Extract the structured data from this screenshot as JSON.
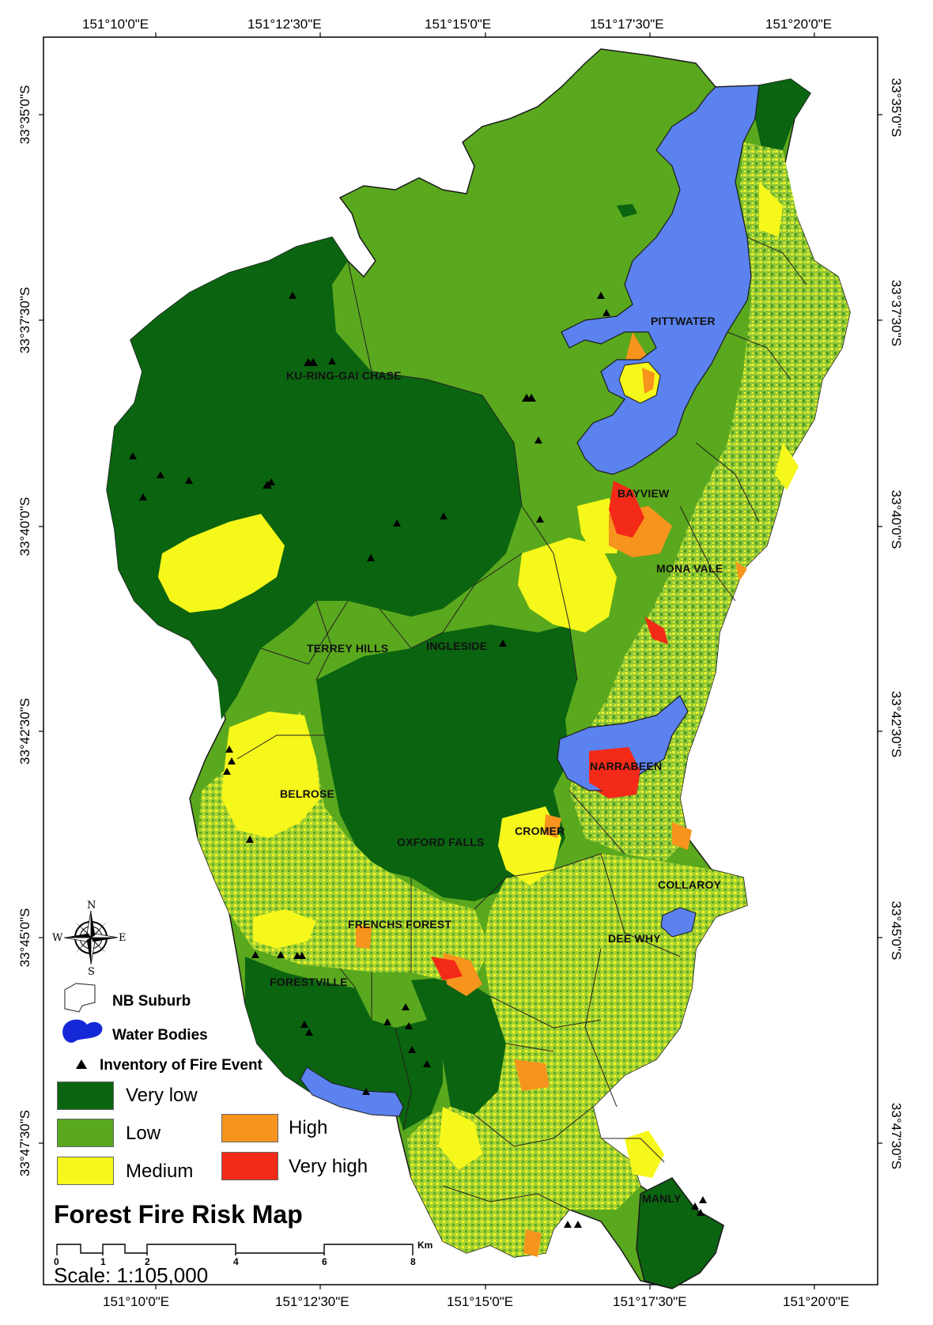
{
  "map": {
    "title": "Forest Fire Risk Map",
    "scale_text": "Scale: 1:105,000",
    "scale_bar": {
      "ticks": [
        "0",
        "1",
        "2",
        "4",
        "6",
        "8"
      ],
      "unit": "Km"
    },
    "coords_top": [
      "151°10'0\"E",
      "151°12'30\"E",
      "151°15'0\"E",
      "151°17'30\"E",
      "151°20'0\"E"
    ],
    "coords_bottom": [
      "151°10'0\"E",
      "151°12'30\"E",
      "151°15'0\"E",
      "151°17'30\"E",
      "151°20'0\"E"
    ],
    "coords_left": [
      "33°35'0\"S",
      "33°37'30\"S",
      "33°40'0\"S",
      "33°42'30\"S",
      "33°45'0\"S",
      "33°47'30\"S"
    ],
    "coords_right": [
      "33°35'0\"S",
      "33°37'30\"S",
      "33°40'0\"S",
      "33°42'30\"S",
      "33°45'0\"S",
      "33°47'30\"S"
    ],
    "places": [
      "PITTWATER",
      "KU-RING-GAI CHASE",
      "BAYVIEW",
      "MONA VALE",
      "TERREY HILLS",
      "INGLESIDE",
      "NARRABEEN",
      "BELROSE",
      "CROMER",
      "OXFORD FALLS",
      "COLLAROY",
      "FRENCHS FOREST",
      "DEE WHY",
      "FORESTVILLE",
      "MANLY"
    ],
    "compass": {
      "n": "N",
      "s": "S",
      "e": "E",
      "w": "W"
    }
  },
  "legend": {
    "symbols": [
      {
        "label": "NB Suburb",
        "icon": "suburb-outline-icon"
      },
      {
        "label": "Water Bodies",
        "icon": "water-body-icon"
      },
      {
        "label": "Inventory of Fire Event",
        "icon": "fire-event-triangle-icon"
      }
    ],
    "classes": [
      {
        "label": "Very low",
        "color": "#0b6410"
      },
      {
        "label": "Low",
        "color": "#5aa81e"
      },
      {
        "label": "Medium",
        "color": "#f6f71a"
      },
      {
        "label": "High",
        "color": "#f7941d"
      },
      {
        "label": "Very high",
        "color": "#f42a18"
      }
    ],
    "water_color": "#5b82ee"
  }
}
